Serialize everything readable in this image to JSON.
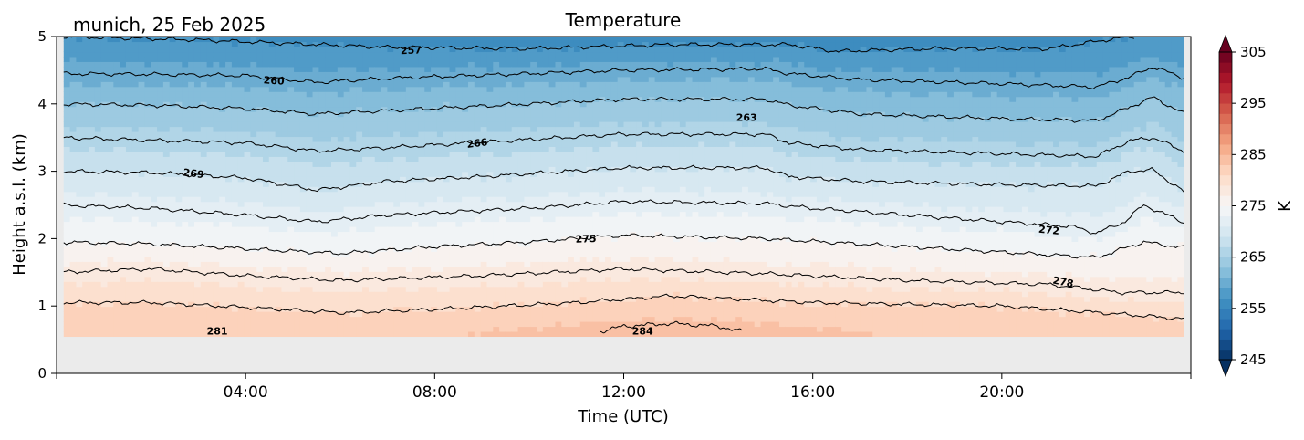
{
  "chart_data": {
    "type": "heatmap",
    "title": "Temperature",
    "station_label": "munich, 25 Feb 2025",
    "xlabel": "Time (UTC)",
    "ylabel": "Height a.s.l. (km)",
    "x_unit": "hours (UTC)",
    "xlim": [
      0,
      24
    ],
    "ylim": [
      0,
      5
    ],
    "x_ticks": [
      {
        "value": 4,
        "label": "04:00"
      },
      {
        "value": 8,
        "label": "08:00"
      },
      {
        "value": 12,
        "label": "12:00"
      },
      {
        "value": 16,
        "label": "16:00"
      },
      {
        "value": 20,
        "label": "20:00"
      }
    ],
    "y_ticks": [
      {
        "value": 0,
        "label": "0"
      },
      {
        "value": 1,
        "label": "1"
      },
      {
        "value": 2,
        "label": "2"
      },
      {
        "value": 3,
        "label": "3"
      },
      {
        "value": 4,
        "label": "4"
      },
      {
        "value": 5,
        "label": "5"
      }
    ],
    "data_bottom_km": 0.55,
    "no_data_color": "#ebebeb",
    "colorbar": {
      "label": "K",
      "min": 245,
      "max": 305,
      "step": 2,
      "ticks": [
        {
          "value": 245,
          "label": "245"
        },
        {
          "value": 255,
          "label": "255"
        },
        {
          "value": 265,
          "label": "265"
        },
        {
          "value": 275,
          "label": "275"
        },
        {
          "value": 285,
          "label": "285"
        },
        {
          "value": 295,
          "label": "295"
        },
        {
          "value": 305,
          "label": "305"
        }
      ],
      "colormap": "RdBu_r",
      "extend": "both"
    },
    "temperature_profile": {
      "description_levels_km": [
        0.55,
        1.0,
        1.5,
        2.0,
        2.5,
        3.0,
        3.5,
        4.0,
        4.5,
        5.0
      ],
      "midday_temps_K": [
        284.5,
        281.5,
        278.8,
        275.6,
        272.6,
        269.6,
        266.6,
        263.4,
        260.2,
        256.8
      ]
    },
    "contour_levels": [
      {
        "value": 257,
        "label": "257",
        "heights": [
          [
            0,
            5.0
          ],
          [
            3,
            4.95
          ],
          [
            7,
            4.84
          ],
          [
            10,
            4.82
          ],
          [
            13,
            4.88
          ],
          [
            15.5,
            4.88
          ],
          [
            16.5,
            4.78
          ],
          [
            18.5,
            4.82
          ],
          [
            21,
            4.82
          ],
          [
            22.2,
            4.95
          ],
          [
            22.8,
            5.0
          ]
        ]
      },
      {
        "value": 260,
        "label": "260",
        "heights": [
          [
            0,
            4.45
          ],
          [
            2,
            4.44
          ],
          [
            4,
            4.42
          ],
          [
            5.5,
            4.32
          ],
          [
            7,
            4.38
          ],
          [
            10,
            4.45
          ],
          [
            12,
            4.5
          ],
          [
            15,
            4.52
          ],
          [
            15.5,
            4.45
          ],
          [
            17,
            4.36
          ],
          [
            20,
            4.3
          ],
          [
            22,
            4.25
          ],
          [
            22.7,
            4.4
          ],
          [
            23.2,
            4.55
          ],
          [
            24,
            4.35
          ]
        ]
      },
      {
        "value": 263,
        "label": "263",
        "heights": [
          [
            0,
            4.0
          ],
          [
            2,
            3.98
          ],
          [
            4,
            3.93
          ],
          [
            5.5,
            3.85
          ],
          [
            7,
            3.9
          ],
          [
            10,
            4.0
          ],
          [
            12,
            4.07
          ],
          [
            15,
            4.07
          ],
          [
            15.5,
            3.98
          ],
          [
            17,
            3.85
          ],
          [
            20,
            3.78
          ],
          [
            22,
            3.75
          ],
          [
            22.7,
            3.95
          ],
          [
            23.2,
            4.1
          ],
          [
            24,
            3.8
          ]
        ]
      },
      {
        "value": 266,
        "label": "266",
        "heights": [
          [
            0,
            3.5
          ],
          [
            2,
            3.46
          ],
          [
            4,
            3.42
          ],
          [
            5.5,
            3.3
          ],
          [
            7,
            3.35
          ],
          [
            9,
            3.43
          ],
          [
            12,
            3.55
          ],
          [
            15,
            3.55
          ],
          [
            15.5,
            3.42
          ],
          [
            17,
            3.32
          ],
          [
            20,
            3.26
          ],
          [
            22,
            3.22
          ],
          [
            22.7,
            3.45
          ],
          [
            23.2,
            3.5
          ],
          [
            24,
            3.25
          ]
        ]
      },
      {
        "value": 269,
        "label": "269",
        "heights": [
          [
            0,
            3.0
          ],
          [
            2,
            2.98
          ],
          [
            4,
            2.9
          ],
          [
            5.5,
            2.72
          ],
          [
            7,
            2.85
          ],
          [
            9,
            2.92
          ],
          [
            12,
            3.05
          ],
          [
            15,
            3.05
          ],
          [
            15.5,
            2.92
          ],
          [
            17,
            2.85
          ],
          [
            20,
            2.8
          ],
          [
            22,
            2.78
          ],
          [
            22.7,
            3.0
          ],
          [
            23.2,
            3.02
          ],
          [
            24,
            2.62
          ]
        ]
      },
      {
        "value": 272,
        "label": "272",
        "heights": [
          [
            0,
            2.5
          ],
          [
            2,
            2.45
          ],
          [
            4,
            2.35
          ],
          [
            5.5,
            2.25
          ],
          [
            7,
            2.35
          ],
          [
            10,
            2.45
          ],
          [
            12,
            2.55
          ],
          [
            15,
            2.52
          ],
          [
            16,
            2.45
          ],
          [
            18,
            2.35
          ],
          [
            20,
            2.25
          ],
          [
            21.5,
            2.18
          ],
          [
            22,
            2.08
          ],
          [
            22.6,
            2.25
          ],
          [
            23,
            2.5
          ],
          [
            24,
            2.2
          ]
        ]
      },
      {
        "value": 275,
        "label": "275",
        "heights": [
          [
            0,
            1.95
          ],
          [
            2,
            1.92
          ],
          [
            4,
            1.85
          ],
          [
            6,
            1.78
          ],
          [
            8,
            1.88
          ],
          [
            10,
            1.95
          ],
          [
            12,
            2.05
          ],
          [
            15,
            2.0
          ],
          [
            17,
            1.92
          ],
          [
            20,
            1.8
          ],
          [
            22,
            1.72
          ],
          [
            23,
            1.95
          ],
          [
            24,
            1.85
          ]
        ]
      },
      {
        "value": 278,
        "label": "278",
        "heights": [
          [
            0,
            1.5
          ],
          [
            2,
            1.55
          ],
          [
            4,
            1.45
          ],
          [
            6,
            1.38
          ],
          [
            9,
            1.45
          ],
          [
            12,
            1.55
          ],
          [
            15,
            1.48
          ],
          [
            18,
            1.38
          ],
          [
            21,
            1.32
          ],
          [
            22.5,
            1.2
          ],
          [
            24,
            1.2
          ]
        ]
      },
      {
        "value": 281,
        "label": "281",
        "heights": [
          [
            0,
            1.05
          ],
          [
            2,
            1.05
          ],
          [
            4,
            0.98
          ],
          [
            6,
            0.9
          ],
          [
            8,
            0.95
          ],
          [
            11,
            1.05
          ],
          [
            13,
            1.15
          ],
          [
            16,
            1.05
          ],
          [
            20,
            1.0
          ],
          [
            22.5,
            0.88
          ],
          [
            24,
            0.8
          ]
        ]
      },
      {
        "value": 284,
        "label": "284",
        "heights": [
          [
            11.5,
            0.62
          ],
          [
            12,
            0.7
          ],
          [
            13,
            0.74
          ],
          [
            14,
            0.7
          ],
          [
            14.5,
            0.62
          ]
        ]
      }
    ],
    "contour_label_positions": [
      {
        "label": "257",
        "x": 7.5,
        "y": 4.8,
        "angle": -2
      },
      {
        "label": "260",
        "x": 4.6,
        "y": 4.35,
        "angle": 4
      },
      {
        "label": "263",
        "x": 14.6,
        "y": 3.8,
        "angle": 0
      },
      {
        "label": "266",
        "x": 8.9,
        "y": 3.42,
        "angle": -7
      },
      {
        "label": "269",
        "x": 2.9,
        "y": 2.97,
        "angle": 7
      },
      {
        "label": "272",
        "x": 21.0,
        "y": 2.13,
        "angle": 6
      },
      {
        "label": "275",
        "x": 11.2,
        "y": 2.0,
        "angle": -2
      },
      {
        "label": "278",
        "x": 21.3,
        "y": 1.36,
        "angle": 11
      },
      {
        "label": "281",
        "x": 3.4,
        "y": 0.63,
        "angle": 0
      },
      {
        "label": "284",
        "x": 12.4,
        "y": 0.63,
        "angle": 0
      }
    ]
  }
}
